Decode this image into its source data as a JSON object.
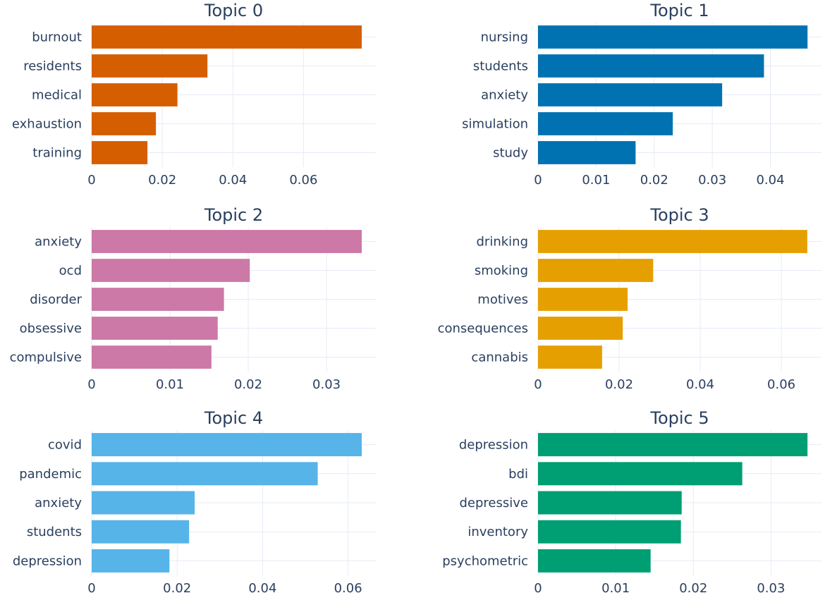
{
  "chart_data": [
    {
      "type": "bar",
      "orientation": "horizontal",
      "title": "Topic 0",
      "color": "#D55E00",
      "categories": [
        "burnout",
        "residents",
        "medical",
        "exhaustion",
        "training"
      ],
      "values": [
        0.0765,
        0.0328,
        0.0243,
        0.0182,
        0.0158
      ],
      "xticks": [
        0,
        0.02,
        0.04,
        0.06
      ],
      "xtick_labels": [
        "0",
        "0.02",
        "0.04",
        "0.06"
      ],
      "xlim": [
        0,
        0.0805
      ]
    },
    {
      "type": "bar",
      "orientation": "horizontal",
      "title": "Topic 1",
      "color": "#0072B2",
      "categories": [
        "nursing",
        "students",
        "anxiety",
        "simulation",
        "study"
      ],
      "values": [
        0.0464,
        0.0389,
        0.0317,
        0.0232,
        0.0168
      ],
      "xticks": [
        0,
        0.01,
        0.02,
        0.03,
        0.04
      ],
      "xtick_labels": [
        "0",
        "0.01",
        "0.02",
        "0.03",
        "0.04"
      ],
      "xlim": [
        0,
        0.0488
      ]
    },
    {
      "type": "bar",
      "orientation": "horizontal",
      "title": "Topic 2",
      "color": "#CC79A7",
      "categories": [
        "anxiety",
        "ocd",
        "disorder",
        "obsessive",
        "compulsive"
      ],
      "values": [
        0.0345,
        0.0202,
        0.0169,
        0.0161,
        0.0153
      ],
      "xticks": [
        0,
        0.01,
        0.02,
        0.03
      ],
      "xtick_labels": [
        "0",
        "0.01",
        "0.02",
        "0.03"
      ],
      "xlim": [
        0,
        0.0363
      ]
    },
    {
      "type": "bar",
      "orientation": "horizontal",
      "title": "Topic 3",
      "color": "#E69F00",
      "categories": [
        "drinking",
        "smoking",
        "motives",
        "consequences",
        "cannabis"
      ],
      "values": [
        0.0664,
        0.0284,
        0.0221,
        0.0209,
        0.0158
      ],
      "xticks": [
        0,
        0.02,
        0.04,
        0.06
      ],
      "xtick_labels": [
        "0",
        "0.02",
        "0.04",
        "0.06"
      ],
      "xlim": [
        0,
        0.0699
      ]
    },
    {
      "type": "bar",
      "orientation": "horizontal",
      "title": "Topic 4",
      "color": "#56B4E9",
      "categories": [
        "covid",
        "pandemic",
        "anxiety",
        "students",
        "depression"
      ],
      "values": [
        0.0632,
        0.0529,
        0.0241,
        0.0228,
        0.0182
      ],
      "xticks": [
        0,
        0.02,
        0.04,
        0.06
      ],
      "xtick_labels": [
        "0",
        "0.02",
        "0.04",
        "0.06"
      ],
      "xlim": [
        0,
        0.0665
      ]
    },
    {
      "type": "bar",
      "orientation": "horizontal",
      "title": "Topic 5",
      "color": "#009E73",
      "categories": [
        "depression",
        "bdi",
        "depressive",
        "inventory",
        "psychometric"
      ],
      "values": [
        0.0347,
        0.0263,
        0.0185,
        0.0184,
        0.0145
      ],
      "xticks": [
        0,
        0.01,
        0.02,
        0.03
      ],
      "xtick_labels": [
        "0",
        "0.01",
        "0.02",
        "0.03"
      ],
      "xlim": [
        0,
        0.0365
      ]
    }
  ]
}
